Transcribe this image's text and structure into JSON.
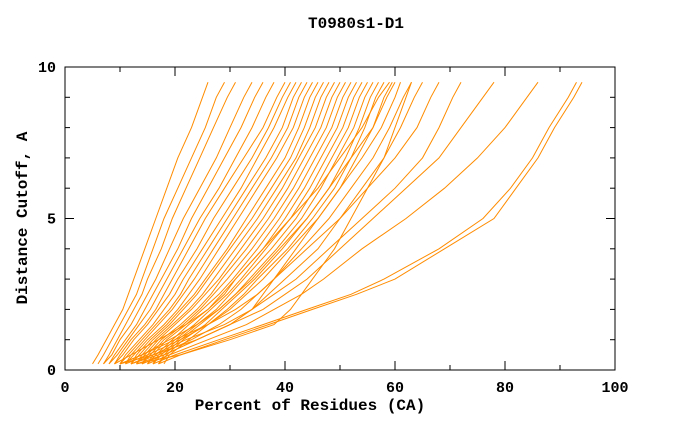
{
  "title": "T0980s1-D1",
  "axes": {
    "x": {
      "label": "Percent of Residues (CA)",
      "min": 0,
      "max": 100,
      "major_ticks": [
        0,
        20,
        40,
        60,
        80,
        100
      ],
      "major_tick_labels": [
        "0",
        "20",
        "40",
        "60",
        "80",
        "100"
      ],
      "minor_ticks": [
        10,
        30,
        50,
        70,
        90
      ]
    },
    "y": {
      "label": "Distance Cutoff, A",
      "min": 0,
      "max": 10,
      "major_ticks": [
        0,
        5,
        10
      ],
      "major_tick_labels": [
        "0",
        "5",
        "10"
      ],
      "minor_ticks": [
        1,
        2,
        3,
        4,
        6,
        7,
        8,
        9
      ]
    }
  },
  "colors": {
    "curve": "#FF8C00",
    "axis": "#000000",
    "text": "#000000",
    "background": "#FFFFFF"
  },
  "chart_data": {
    "type": "line",
    "title": "T0980s1-D1",
    "xlabel": "Percent of Residues (CA)",
    "ylabel": "Distance Cutoff, A",
    "xlim": [
      0,
      100
    ],
    "ylim": [
      0,
      10
    ],
    "grid": false,
    "legend": "none",
    "description": "GDT-style plot: each orange curve is one model; x = percent of CA residues under the distance cutoff y (Angstroms). Curves estimated from pixels.",
    "cutoffs": [
      0.2,
      0.5,
      1,
      1.5,
      2,
      2.5,
      3,
      4,
      5,
      6,
      7,
      8,
      9,
      9.5
    ],
    "series": [
      [
        5,
        6,
        7.5,
        9,
        10.5,
        11.5,
        12.5,
        14.5,
        16.5,
        18.5,
        20.5,
        23,
        25,
        26
      ],
      [
        6,
        7,
        8.5,
        10,
        11.5,
        13,
        14,
        16,
        18,
        20.5,
        23,
        25.5,
        27.5,
        29
      ],
      [
        7,
        8,
        9.5,
        11,
        12.5,
        14,
        15,
        17.5,
        19.5,
        22,
        24.5,
        27,
        29.5,
        31
      ],
      [
        7,
        8.5,
        10,
        12,
        13.5,
        15,
        16.5,
        19,
        21.5,
        24.5,
        27.5,
        30,
        32.5,
        34
      ],
      [
        8,
        9,
        11,
        13,
        14.5,
        16,
        17.5,
        20.5,
        23,
        26,
        29,
        32,
        34.5,
        36
      ],
      [
        8,
        9.5,
        11.5,
        13.5,
        15.5,
        17,
        18.5,
        21.5,
        24.5,
        28,
        31,
        34,
        36.5,
        38
      ],
      [
        9,
        10,
        12,
        14.5,
        16.5,
        18,
        19.5,
        22.5,
        25.5,
        29,
        32.5,
        36,
        38.5,
        40
      ],
      [
        9,
        10.5,
        12.5,
        15,
        17,
        19,
        20.5,
        24,
        27,
        30.5,
        34,
        37,
        39.5,
        41
      ],
      [
        10,
        11,
        13.5,
        16,
        18,
        20,
        21.5,
        25,
        28.5,
        32,
        35,
        38,
        40.5,
        42
      ],
      [
        10,
        11.5,
        14,
        16.5,
        19,
        21,
        22.5,
        26,
        29.5,
        33,
        36.5,
        39.5,
        41.5,
        43
      ],
      [
        11,
        12,
        14.5,
        17,
        19.5,
        21.5,
        23.5,
        27,
        30.5,
        34,
        37.5,
        40.5,
        42.5,
        44
      ],
      [
        11,
        12.5,
        15,
        18,
        20.5,
        22.5,
        24.5,
        28,
        31.5,
        35,
        38.5,
        41.5,
        43.5,
        45
      ],
      [
        12,
        13,
        15.5,
        18.5,
        21,
        23.5,
        25.5,
        29.5,
        33,
        36.5,
        40,
        42.5,
        44.5,
        46
      ],
      [
        12,
        13.5,
        16,
        19,
        21.5,
        24,
        26,
        30,
        34,
        37.5,
        41,
        43.5,
        45.5,
        47
      ],
      [
        13,
        14,
        16.5,
        19.5,
        22.5,
        25,
        27,
        31,
        35,
        38.5,
        42,
        44.5,
        46.5,
        48
      ],
      [
        13,
        14.5,
        17,
        20,
        23,
        25.5,
        28,
        32,
        36,
        39.5,
        42.5,
        45.5,
        47.5,
        49
      ],
      [
        14,
        15,
        17.5,
        21,
        24,
        26.5,
        28.5,
        33,
        37,
        40.5,
        43.5,
        46.5,
        48.5,
        50
      ],
      [
        14,
        15.5,
        18,
        21.5,
        24.5,
        27,
        29.5,
        34,
        38,
        41.5,
        44.5,
        47.5,
        49.5,
        51
      ],
      [
        15,
        16,
        18.5,
        22,
        25,
        28,
        30.5,
        35,
        39,
        42.5,
        45.5,
        48.5,
        50.5,
        52
      ],
      [
        15,
        16.5,
        19.5,
        22.5,
        26,
        28.5,
        31,
        36,
        40,
        43.5,
        46.5,
        49.5,
        51.5,
        53
      ],
      [
        16,
        17,
        20,
        23.5,
        26.5,
        29.5,
        32,
        36.5,
        41,
        44.5,
        47.5,
        50.5,
        52.5,
        54
      ],
      [
        16,
        17.5,
        20.5,
        24,
        27.5,
        30,
        32.5,
        37.5,
        42,
        45.5,
        48.5,
        51.5,
        53.5,
        55
      ],
      [
        17,
        18,
        21,
        24.5,
        28,
        31,
        33.5,
        38.5,
        43,
        46.5,
        49.5,
        52.5,
        54.5,
        56
      ],
      [
        17,
        18.5,
        21.5,
        25.5,
        28.5,
        31.5,
        34.5,
        39.5,
        44,
        48,
        51,
        53.5,
        55.5,
        57
      ],
      [
        18,
        19,
        22.5,
        26,
        29.5,
        32.5,
        35,
        40.5,
        45,
        49,
        52,
        54.5,
        56.5,
        58
      ],
      [
        9,
        12,
        17,
        22,
        26,
        29,
        31,
        36,
        41,
        46,
        50,
        54,
        57,
        59
      ],
      [
        10,
        14,
        19,
        24,
        28,
        31,
        34,
        39,
        44,
        48,
        52,
        56,
        58.5,
        60
      ],
      [
        11,
        15,
        21,
        26,
        30,
        33,
        36,
        41,
        46,
        50,
        54,
        57.5,
        60,
        61
      ],
      [
        12,
        17,
        23,
        28,
        32,
        35,
        38,
        43,
        48,
        52,
        56,
        59,
        61.5,
        63
      ],
      [
        13,
        18,
        24,
        30,
        34,
        37,
        40,
        46,
        50,
        54,
        58,
        61,
        63.5,
        65
      ],
      [
        10,
        14,
        20,
        26,
        31,
        35,
        38,
        44,
        50,
        55,
        60,
        64,
        66.5,
        68
      ],
      [
        12,
        16,
        22,
        29,
        34,
        38,
        42,
        48,
        54,
        60,
        65,
        68,
        70.5,
        72
      ],
      [
        14,
        18,
        24,
        30,
        36,
        40,
        44,
        50,
        56,
        62,
        68,
        72,
        76,
        78
      ],
      [
        15,
        19,
        26,
        33,
        38,
        43,
        47,
        54,
        62,
        69,
        75,
        80,
        84,
        86
      ],
      [
        16,
        20,
        28,
        36,
        44,
        52,
        58,
        68,
        76,
        81,
        85,
        88,
        91.5,
        93
      ],
      [
        17,
        21,
        29,
        37,
        45,
        53,
        60,
        69,
        78,
        82,
        86,
        89,
        92.5,
        94
      ],
      [
        10,
        16,
        24,
        30,
        34,
        36,
        38,
        42,
        46,
        50,
        53,
        56,
        58,
        59.5
      ],
      [
        13,
        21,
        30,
        38,
        41,
        43,
        45,
        49,
        52,
        55,
        58,
        60,
        62,
        63
      ]
    ]
  }
}
